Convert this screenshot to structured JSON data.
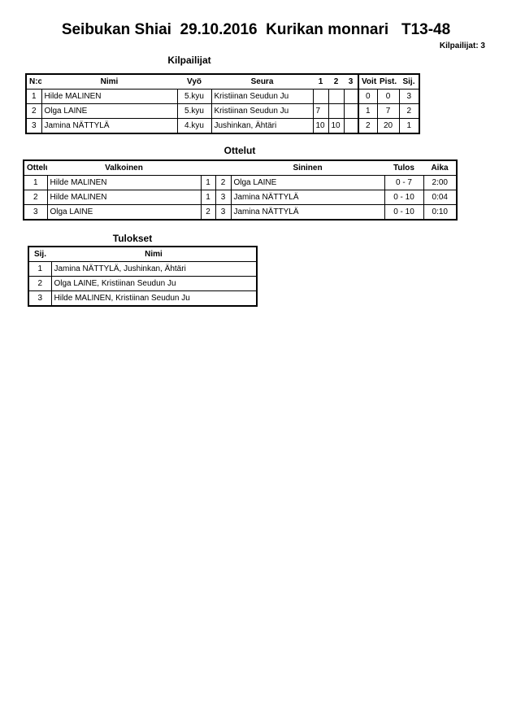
{
  "header": {
    "title": "Seibukan Shiai  29.10.2016  Kurikan monnari   T13-48",
    "competitor_count": "Kilpailijat: 3"
  },
  "competitors": {
    "title": "Kilpailijat",
    "columns": [
      "N:o",
      "Nimi",
      "Vyö",
      "Seura",
      "1",
      "2",
      "3",
      "Voit.",
      "Pist.",
      "Sij."
    ],
    "rows": [
      [
        "1",
        "Hilde MALINEN",
        "5.kyu",
        "Kristiinan Seudun Ju",
        "",
        "",
        "",
        "0",
        "0",
        "3"
      ],
      [
        "2",
        "Olga LAINE",
        "5.kyu",
        "Kristiinan Seudun Ju",
        "7",
        "",
        "",
        "1",
        "7",
        "2"
      ],
      [
        "3",
        "Jamina NÄTTYLÄ",
        "4.kyu",
        "Jushinkan, Ähtäri",
        "10",
        "10",
        "",
        "2",
        "20",
        "1"
      ]
    ]
  },
  "matches": {
    "title": "Ottelut",
    "columns": [
      "Ottelu",
      "Valkoinen",
      "",
      "",
      "Sininen",
      "Tulos",
      "Aika"
    ],
    "rows": [
      [
        "1",
        "Hilde MALINEN",
        "1",
        "2",
        "Olga LAINE",
        "0 - 7",
        "2:00"
      ],
      [
        "2",
        "Hilde MALINEN",
        "1",
        "3",
        "Jamina NÄTTYLÄ",
        "0 - 10",
        "0:04"
      ],
      [
        "3",
        "Olga LAINE",
        "2",
        "3",
        "Jamina NÄTTYLÄ",
        "0 - 10",
        "0:10"
      ]
    ]
  },
  "results": {
    "title": "Tulokset",
    "columns": [
      "Sij.",
      "Nimi"
    ],
    "rows": [
      [
        "1",
        "Jamina NÄTTYLÄ, Jushinkan, Ähtäri"
      ],
      [
        "2",
        "Olga LAINE, Kristiinan Seudun Ju"
      ],
      [
        "3",
        "Hilde MALINEN, Kristiinan Seudun Ju"
      ]
    ]
  }
}
